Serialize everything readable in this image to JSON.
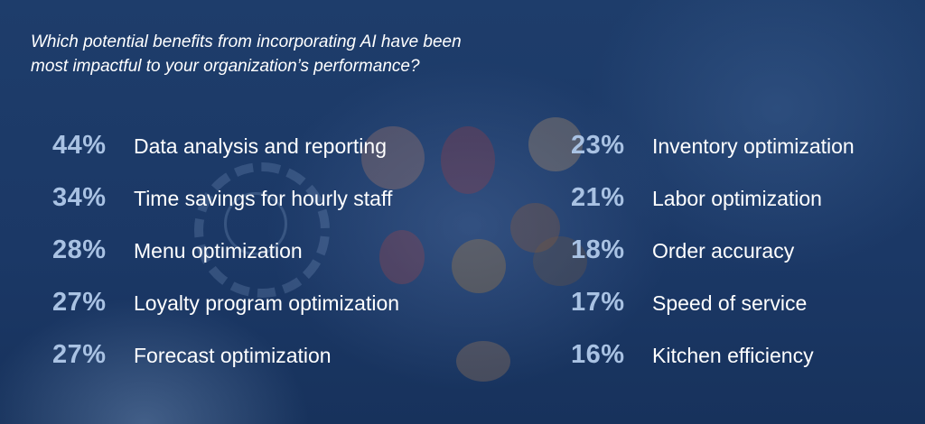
{
  "chart_data": {
    "type": "table",
    "title": "Which potential benefits from incorporating AI have been\nmost impactful to your organization’s performance?",
    "columns": [
      [
        {
          "value": 44,
          "display": "44%",
          "label": "Data analysis and reporting"
        },
        {
          "value": 34,
          "display": "34%",
          "label": "Time savings for hourly staff"
        },
        {
          "value": 28,
          "display": "28%",
          "label": "Menu optimization"
        },
        {
          "value": 27,
          "display": "27%",
          "label": "Loyalty program optimization"
        },
        {
          "value": 27,
          "display": "27%",
          "label": "Forecast optimization"
        }
      ],
      [
        {
          "value": 23,
          "display": "23%",
          "label": "Inventory optimization"
        },
        {
          "value": 21,
          "display": "21%",
          "label": "Labor optimization"
        },
        {
          "value": 18,
          "display": "18%",
          "label": "Order accuracy"
        },
        {
          "value": 17,
          "display": "17%",
          "label": "Speed of service"
        },
        {
          "value": 16,
          "display": "16%",
          "label": "Kitchen efficiency"
        }
      ]
    ]
  },
  "colors": {
    "background": "#1c3a66",
    "percent": "#a9c2e3",
    "text": "#ffffff"
  }
}
